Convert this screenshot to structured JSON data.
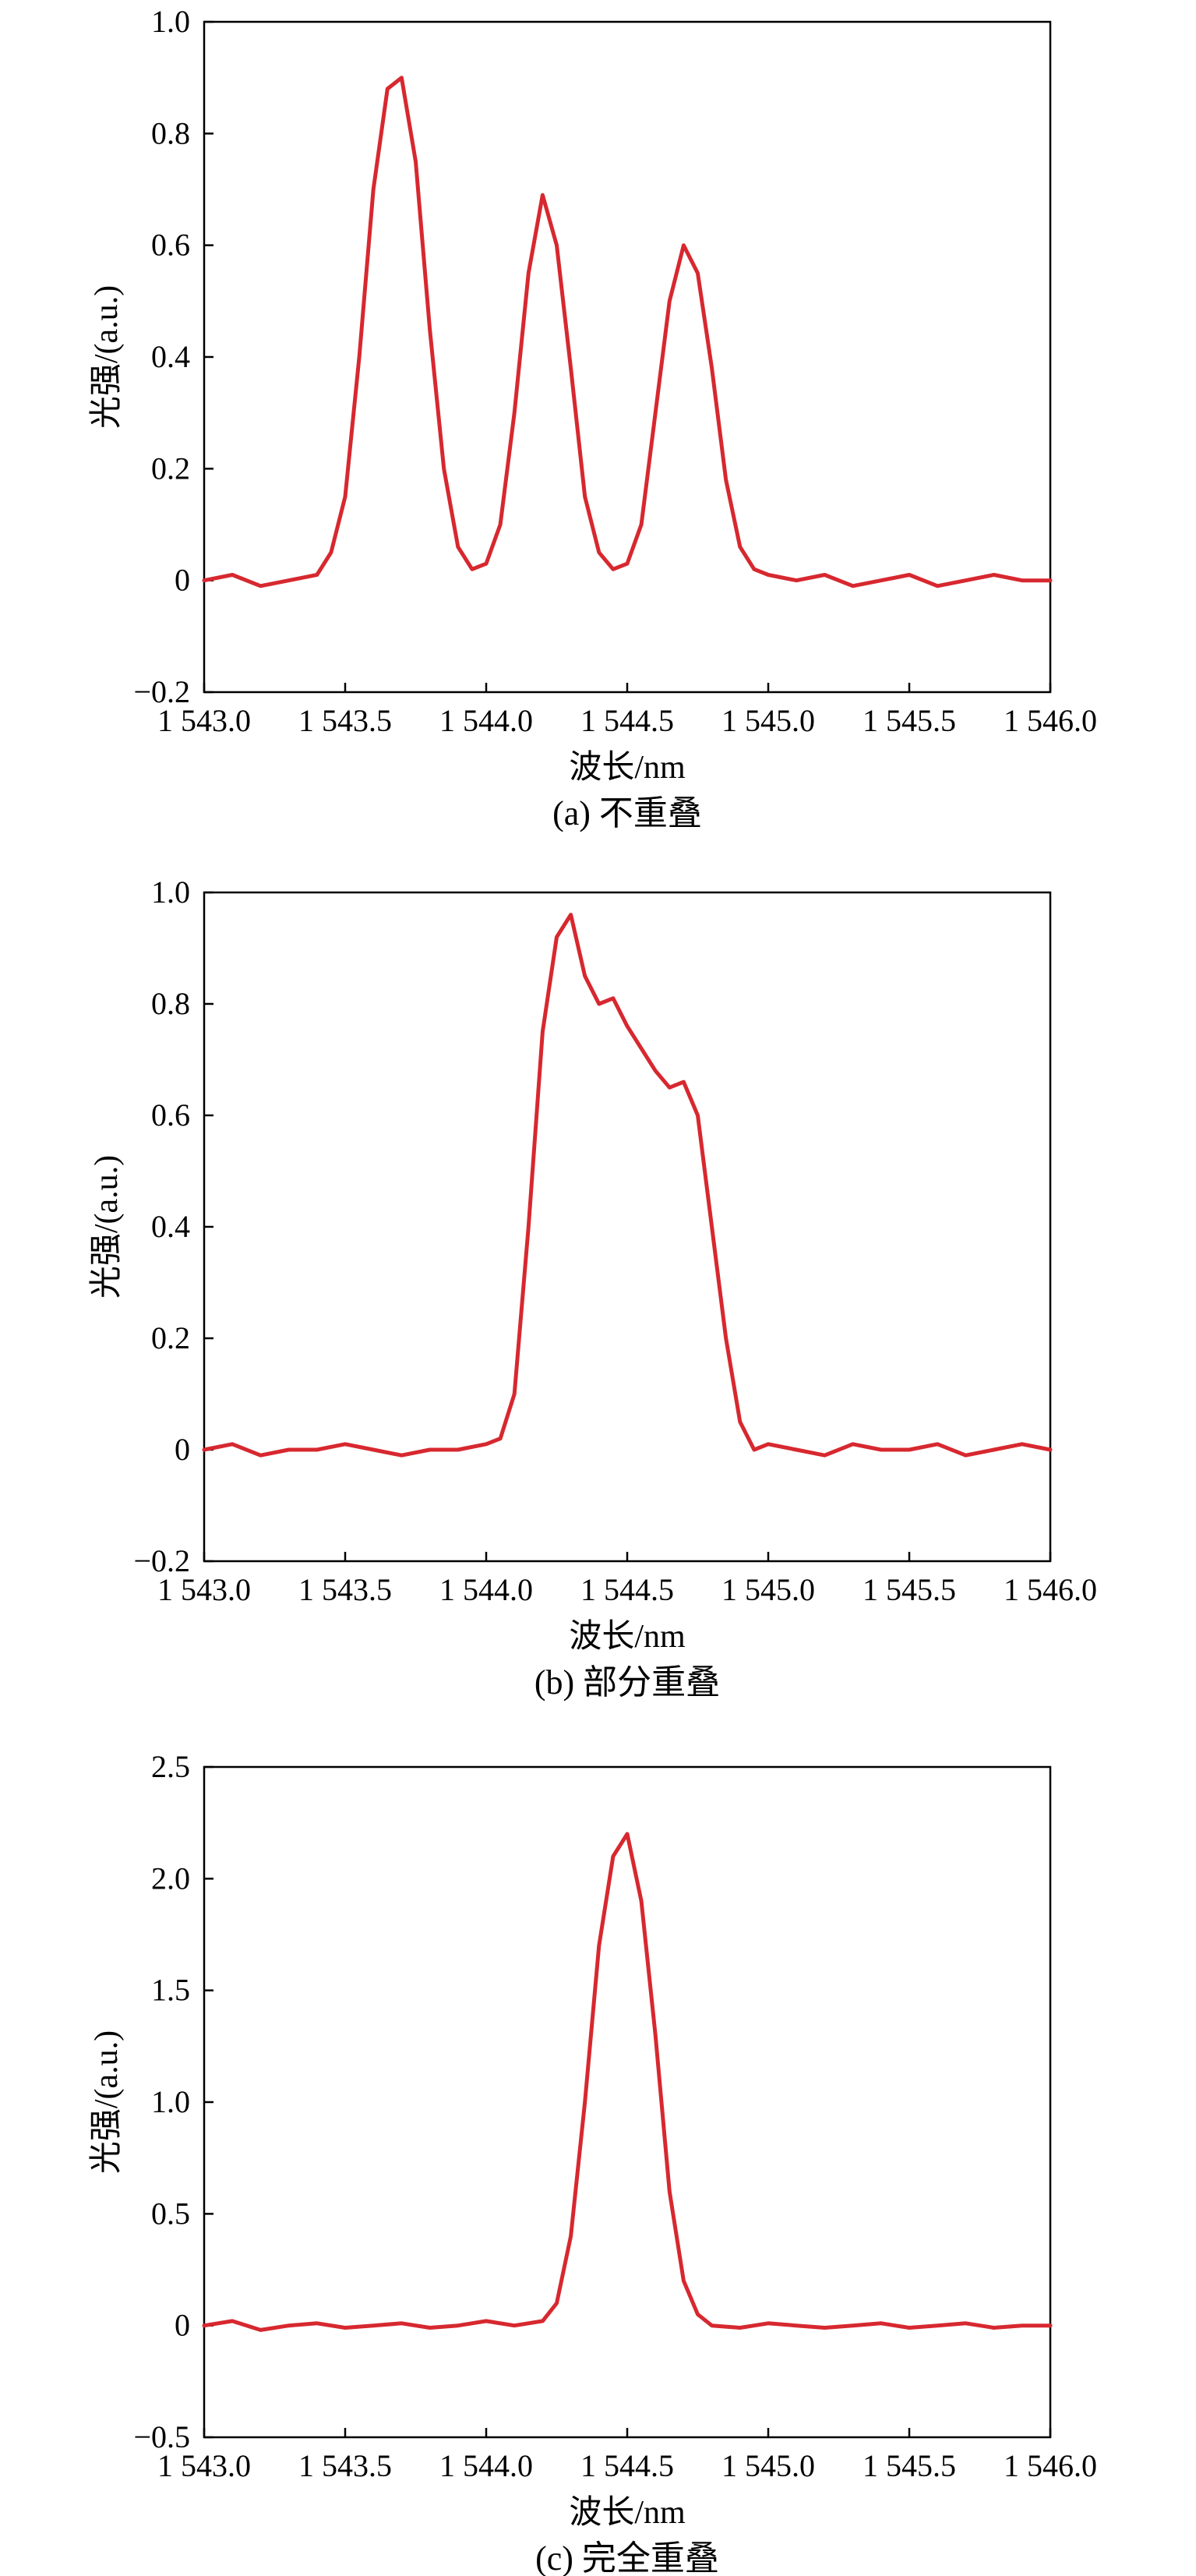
{
  "chart_data": [
    {
      "type": "line",
      "caption": "(a) 不重叠",
      "xlabel": "波长/nm",
      "ylabel": "光强/(a.u.)",
      "xlim": [
        1543.0,
        1546.0
      ],
      "ylim": [
        -0.2,
        1.0
      ],
      "xticks": [
        1543.0,
        1543.5,
        1544.0,
        1544.5,
        1545.0,
        1545.5,
        1546.0
      ],
      "xtick_labels": [
        "1 543.0",
        "1 543.5",
        "1 544.0",
        "1 544.5",
        "1 545.0",
        "1 545.5",
        "1 546.0"
      ],
      "yticks": [
        -0.2,
        0,
        0.2,
        0.4,
        0.6,
        0.8,
        1.0
      ],
      "ytick_labels": [
        "−0.2",
        "0",
        "0.2",
        "0.4",
        "0.6",
        "0.8",
        "1.0"
      ],
      "grid": false,
      "line_color": "#d7282f",
      "series": [
        {
          "x": [
            1543.0,
            1543.1,
            1543.2,
            1543.3,
            1543.4,
            1543.45,
            1543.5,
            1543.55,
            1543.6,
            1543.65,
            1543.7,
            1543.75,
            1543.8,
            1543.85,
            1543.9,
            1543.95,
            1544.0,
            1544.05,
            1544.1,
            1544.15,
            1544.2,
            1544.25,
            1544.3,
            1544.35,
            1544.4,
            1544.45,
            1544.5,
            1544.55,
            1544.6,
            1544.65,
            1544.7,
            1544.75,
            1544.8,
            1544.85,
            1544.9,
            1544.95,
            1545.0,
            1545.1,
            1545.2,
            1545.3,
            1545.4,
            1545.5,
            1545.6,
            1545.7,
            1545.8,
            1545.9,
            1546.0
          ],
          "y": [
            0.0,
            0.01,
            -0.01,
            0.0,
            0.01,
            0.05,
            0.15,
            0.4,
            0.7,
            0.88,
            0.9,
            0.75,
            0.45,
            0.2,
            0.06,
            0.02,
            0.03,
            0.1,
            0.3,
            0.55,
            0.69,
            0.6,
            0.38,
            0.15,
            0.05,
            0.02,
            0.03,
            0.1,
            0.3,
            0.5,
            0.6,
            0.55,
            0.38,
            0.18,
            0.06,
            0.02,
            0.01,
            0.0,
            0.01,
            -0.01,
            0.0,
            0.01,
            -0.01,
            0.0,
            0.01,
            0.0,
            0.0
          ]
        }
      ]
    },
    {
      "type": "line",
      "caption": "(b) 部分重叠",
      "xlabel": "波长/nm",
      "ylabel": "光强/(a.u.)",
      "xlim": [
        1543.0,
        1546.0
      ],
      "ylim": [
        -0.2,
        1.0
      ],
      "xticks": [
        1543.0,
        1543.5,
        1544.0,
        1544.5,
        1545.0,
        1545.5,
        1546.0
      ],
      "xtick_labels": [
        "1 543.0",
        "1 543.5",
        "1 544.0",
        "1 544.5",
        "1 545.0",
        "1 545.5",
        "1 546.0"
      ],
      "yticks": [
        -0.2,
        0,
        0.2,
        0.4,
        0.6,
        0.8,
        1.0
      ],
      "ytick_labels": [
        "−0.2",
        "0",
        "0.2",
        "0.4",
        "0.6",
        "0.8",
        "1.0"
      ],
      "grid": false,
      "line_color": "#d7282f",
      "series": [
        {
          "x": [
            1543.0,
            1543.1,
            1543.2,
            1543.3,
            1543.4,
            1543.5,
            1543.6,
            1543.7,
            1543.8,
            1543.9,
            1544.0,
            1544.05,
            1544.1,
            1544.15,
            1544.2,
            1544.25,
            1544.3,
            1544.35,
            1544.4,
            1544.45,
            1544.5,
            1544.55,
            1544.6,
            1544.65,
            1544.7,
            1544.75,
            1544.8,
            1544.85,
            1544.9,
            1544.95,
            1545.0,
            1545.1,
            1545.2,
            1545.3,
            1545.4,
            1545.5,
            1545.6,
            1545.7,
            1545.8,
            1545.9,
            1546.0
          ],
          "y": [
            0.0,
            0.01,
            -0.01,
            0.0,
            0.0,
            0.01,
            0.0,
            -0.01,
            0.0,
            0.0,
            0.01,
            0.02,
            0.1,
            0.4,
            0.75,
            0.92,
            0.96,
            0.85,
            0.8,
            0.81,
            0.76,
            0.72,
            0.68,
            0.65,
            0.66,
            0.6,
            0.4,
            0.2,
            0.05,
            0.0,
            0.01,
            0.0,
            -0.01,
            0.01,
            0.0,
            0.0,
            0.01,
            -0.01,
            0.0,
            0.01,
            0.0
          ]
        }
      ]
    },
    {
      "type": "line",
      "caption": "(c) 完全重叠",
      "xlabel": "波长/nm",
      "ylabel": "光强/(a.u.)",
      "xlim": [
        1543.0,
        1546.0
      ],
      "ylim": [
        -0.5,
        2.5
      ],
      "xticks": [
        1543.0,
        1543.5,
        1544.0,
        1544.5,
        1545.0,
        1545.5,
        1546.0
      ],
      "xtick_labels": [
        "1 543.0",
        "1 543.5",
        "1 544.0",
        "1 544.5",
        "1 545.0",
        "1 545.5",
        "1 546.0"
      ],
      "yticks": [
        -0.5,
        0,
        0.5,
        1.0,
        1.5,
        2.0,
        2.5
      ],
      "ytick_labels": [
        "−0.5",
        "0",
        "0.5",
        "1.0",
        "1.5",
        "2.0",
        "2.5"
      ],
      "grid": false,
      "line_color": "#d7282f",
      "series": [
        {
          "x": [
            1543.0,
            1543.1,
            1543.2,
            1543.3,
            1543.4,
            1543.5,
            1543.6,
            1543.7,
            1543.8,
            1543.9,
            1544.0,
            1544.1,
            1544.2,
            1544.25,
            1544.3,
            1544.35,
            1544.4,
            1544.45,
            1544.5,
            1544.55,
            1544.6,
            1544.65,
            1544.7,
            1544.75,
            1544.8,
            1544.9,
            1545.0,
            1545.1,
            1545.2,
            1545.3,
            1545.4,
            1545.5,
            1545.6,
            1545.7,
            1545.8,
            1545.9,
            1546.0
          ],
          "y": [
            0.0,
            0.02,
            -0.02,
            0.0,
            0.01,
            -0.01,
            0.0,
            0.01,
            -0.01,
            0.0,
            0.02,
            0.0,
            0.02,
            0.1,
            0.4,
            1.0,
            1.7,
            2.1,
            2.2,
            1.9,
            1.3,
            0.6,
            0.2,
            0.05,
            0.0,
            -0.01,
            0.01,
            0.0,
            -0.01,
            0.0,
            0.01,
            -0.01,
            0.0,
            0.01,
            -0.01,
            0.0,
            0.0
          ]
        }
      ]
    }
  ]
}
